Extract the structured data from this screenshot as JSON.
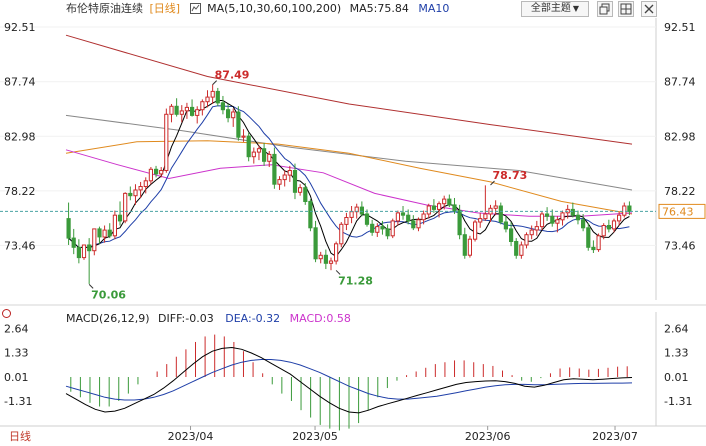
{
  "header": {
    "instrument": "布伦特原油连续",
    "period": "[日线]",
    "ma_label": "MA(5,10,30,60,100,200)",
    "ma5_label": "MA5:75.84",
    "ma10_label": "MA10",
    "theme_button": "全部主题",
    "theme_caret": "▼"
  },
  "colors": {
    "up": "#cc2b2b",
    "down": "#3a9a3a",
    "ma5": "#000000",
    "ma10": "#1f3fa8",
    "ma30": "#cc33cc",
    "ma60": "#e08a1e",
    "ma100": "#888888",
    "ma200": "#b03030",
    "diff": "#000000",
    "dea": "#1f3fa8",
    "price_tag": "#e08a1e"
  },
  "bottom_tab": "日线",
  "chart_data": [
    {
      "type": "candlestick",
      "y_ticks": [
        "92.51",
        "87.74",
        "82.98",
        "78.22",
        "73.46"
      ],
      "ylim": [
        68.7,
        93.3
      ],
      "x_ticks": [
        "2023/04",
        "2023/05",
        "2023/06",
        "2023/07"
      ],
      "current_price": "76.43",
      "annotations": [
        {
          "text": "87.49",
          "value": 87.49,
          "index": 28
        },
        {
          "text": "70.06",
          "value": 70.06,
          "index": 4
        },
        {
          "text": "71.28",
          "value": 71.28,
          "index": 52
        },
        {
          "text": "78.73",
          "value": 78.73,
          "index": 82
        }
      ],
      "series": {
        "ma200": [
          91.8,
          88.2,
          85.8,
          84.0,
          82.3
        ],
        "ma100": [
          84.8,
          83.5,
          82.0,
          80.8,
          80.0,
          78.3
        ],
        "ma60": [
          81.5,
          82.5,
          82.6,
          82.3,
          81.5,
          80.2,
          79.0,
          77.3,
          76.2
        ],
        "ma30": [
          81.8,
          80.5,
          79.3,
          80.2,
          80.5,
          79.8,
          78.0,
          77.0,
          76.3,
          76.0,
          76.0,
          76.3
        ]
      },
      "ohlc": [
        [
          75.8,
          77.2,
          73.5,
          74.1
        ],
        [
          74.1,
          74.9,
          72.7,
          73.3
        ],
        [
          73.3,
          74.0,
          71.9,
          72.4
        ],
        [
          72.4,
          73.5,
          72.2,
          73.5
        ],
        [
          73.5,
          74.1,
          70.1,
          73.0
        ],
        [
          73.0,
          74.9,
          72.6,
          74.9
        ],
        [
          74.9,
          75.1,
          73.6,
          74.2
        ],
        [
          74.2,
          75.2,
          73.7,
          74.8
        ],
        [
          74.8,
          75.4,
          74.1,
          74.3
        ],
        [
          74.3,
          76.5,
          74.0,
          76.1
        ],
        [
          76.1,
          77.3,
          75.2,
          75.6
        ],
        [
          75.6,
          78.1,
          75.4,
          78.0
        ],
        [
          78.0,
          78.6,
          77.4,
          77.8
        ],
        [
          77.8,
          78.8,
          77.0,
          78.3
        ],
        [
          78.3,
          79.0,
          77.6,
          78.6
        ],
        [
          78.6,
          79.4,
          78.0,
          79.1
        ],
        [
          79.1,
          80.3,
          78.8,
          80.1
        ],
        [
          80.1,
          80.4,
          79.4,
          79.7
        ],
        [
          79.7,
          80.3,
          79.4,
          80.0
        ],
        [
          80.0,
          85.4,
          79.8,
          84.9
        ],
        [
          84.9,
          85.8,
          84.2,
          85.6
        ],
        [
          85.6,
          86.3,
          84.7,
          84.9
        ],
        [
          84.9,
          85.7,
          84.2,
          85.2
        ],
        [
          85.2,
          85.9,
          84.5,
          85.5
        ],
        [
          85.5,
          86.2,
          84.7,
          84.8
        ],
        [
          84.8,
          85.6,
          84.1,
          85.3
        ],
        [
          85.3,
          86.2,
          84.8,
          86.0
        ],
        [
          86.0,
          87.0,
          85.5,
          86.4
        ],
        [
          86.4,
          87.5,
          85.8,
          86.9
        ],
        [
          86.9,
          87.2,
          85.6,
          85.9
        ],
        [
          85.9,
          86.5,
          84.9,
          85.3
        ],
        [
          85.3,
          85.8,
          84.2,
          84.6
        ],
        [
          84.6,
          85.4,
          83.8,
          85.1
        ],
        [
          85.1,
          85.6,
          82.6,
          82.9
        ],
        [
          82.9,
          83.6,
          82.5,
          83.0
        ],
        [
          83.0,
          83.3,
          80.8,
          81.2
        ],
        [
          81.2,
          82.0,
          80.6,
          81.6
        ],
        [
          81.6,
          82.2,
          80.9,
          81.9
        ],
        [
          81.9,
          82.4,
          80.4,
          80.8
        ],
        [
          80.8,
          81.7,
          80.3,
          81.4
        ],
        [
          81.4,
          82.0,
          78.4,
          78.8
        ],
        [
          78.8,
          79.5,
          78.3,
          79.2
        ],
        [
          79.2,
          80.0,
          78.6,
          79.6
        ],
        [
          79.6,
          80.4,
          79.0,
          80.0
        ],
        [
          80.0,
          80.6,
          77.5,
          78.1
        ],
        [
          78.1,
          78.8,
          77.8,
          78.5
        ],
        [
          78.5,
          78.9,
          77.0,
          77.3
        ],
        [
          77.3,
          77.5,
          74.7,
          75.0
        ],
        [
          75.0,
          75.6,
          72.0,
          72.3
        ],
        [
          72.3,
          72.9,
          71.9,
          72.6
        ],
        [
          72.6,
          73.1,
          71.4,
          71.9
        ],
        [
          71.9,
          72.4,
          71.3,
          72.1
        ],
        [
          72.1,
          73.8,
          71.8,
          73.6
        ],
        [
          73.6,
          75.5,
          73.3,
          75.3
        ],
        [
          75.3,
          76.3,
          74.8,
          75.9
        ],
        [
          75.9,
          76.9,
          75.4,
          76.4
        ],
        [
          76.4,
          77.1,
          75.8,
          76.8
        ],
        [
          76.8,
          77.3,
          76.0,
          76.2
        ],
        [
          76.2,
          76.6,
          75.1,
          75.3
        ],
        [
          75.3,
          75.7,
          74.3,
          74.6
        ],
        [
          74.6,
          75.4,
          74.2,
          75.1
        ],
        [
          75.1,
          75.6,
          74.4,
          74.9
        ],
        [
          74.9,
          75.3,
          74.0,
          74.3
        ],
        [
          74.3,
          75.8,
          74.1,
          75.6
        ],
        [
          75.6,
          76.5,
          75.2,
          76.3
        ],
        [
          76.3,
          76.9,
          75.7,
          76.1
        ],
        [
          76.1,
          76.6,
          75.3,
          75.6
        ],
        [
          75.6,
          76.1,
          74.8,
          75.0
        ],
        [
          75.0,
          75.9,
          74.7,
          75.7
        ],
        [
          75.7,
          76.5,
          75.3,
          76.2
        ],
        [
          76.2,
          77.1,
          75.8,
          76.9
        ],
        [
          76.9,
          77.5,
          76.3,
          76.6
        ],
        [
          76.6,
          77.3,
          75.9,
          77.1
        ],
        [
          77.1,
          77.8,
          76.6,
          77.5
        ],
        [
          77.5,
          77.9,
          76.8,
          77.0
        ],
        [
          77.0,
          77.6,
          76.2,
          76.5
        ],
        [
          76.5,
          77.0,
          74.0,
          74.4
        ],
        [
          74.4,
          75.0,
          72.3,
          72.6
        ],
        [
          72.6,
          74.3,
          72.4,
          74.0
        ],
        [
          74.0,
          75.7,
          73.8,
          75.5
        ],
        [
          75.5,
          76.3,
          75.0,
          75.8
        ],
        [
          75.8,
          78.7,
          75.6,
          76.2
        ],
        [
          76.2,
          77.0,
          75.5,
          76.7
        ],
        [
          76.7,
          77.4,
          76.1,
          76.9
        ],
        [
          76.9,
          77.2,
          75.3,
          75.5
        ],
        [
          75.5,
          76.0,
          74.6,
          74.9
        ],
        [
          74.9,
          75.5,
          73.4,
          73.8
        ],
        [
          73.8,
          74.1,
          72.3,
          72.6
        ],
        [
          72.6,
          73.8,
          72.3,
          73.5
        ],
        [
          73.5,
          74.6,
          73.2,
          74.4
        ],
        [
          74.4,
          75.2,
          74.0,
          74.8
        ],
        [
          74.8,
          75.6,
          74.3,
          75.1
        ],
        [
          75.1,
          76.4,
          74.8,
          76.2
        ],
        [
          76.2,
          76.8,
          75.6,
          76.0
        ],
        [
          76.0,
          76.6,
          75.1,
          75.4
        ],
        [
          75.4,
          76.0,
          74.6,
          75.7
        ],
        [
          75.7,
          76.5,
          75.2,
          76.3
        ],
        [
          76.3,
          77.0,
          75.8,
          76.6
        ],
        [
          76.6,
          77.2,
          75.9,
          76.1
        ],
        [
          76.1,
          76.5,
          75.3,
          75.7
        ],
        [
          75.7,
          76.2,
          74.7,
          75.0
        ],
        [
          75.0,
          75.4,
          73.0,
          73.3
        ],
        [
          73.3,
          73.9,
          72.8,
          73.1
        ],
        [
          73.1,
          74.5,
          72.9,
          74.3
        ],
        [
          74.3,
          75.4,
          74.0,
          75.2
        ],
        [
          75.2,
          75.7,
          74.6,
          74.9
        ],
        [
          74.9,
          75.8,
          74.6,
          75.6
        ],
        [
          75.6,
          76.4,
          75.2,
          76.1
        ],
        [
          76.1,
          77.2,
          75.9,
          76.9
        ],
        [
          76.9,
          77.3,
          76.1,
          76.43
        ]
      ]
    },
    {
      "type": "bar",
      "title": "MACD(26,12,9)",
      "diff_label": "DIFF:-0.03",
      "dea_label": "DEA:-0.32",
      "macd_label": "MACD:0.58",
      "y_ticks": [
        "2.64",
        "1.33",
        "0.01",
        "-1.31"
      ],
      "ylim": [
        -2.55,
        3.2
      ],
      "diff": [
        -0.9,
        -1.2,
        -1.5,
        -1.75,
        -1.9,
        -1.85,
        -1.7,
        -1.45,
        -1.2,
        -0.95,
        -0.6,
        -0.2,
        0.25,
        0.7,
        1.1,
        1.4,
        1.55,
        1.6,
        1.5,
        1.3,
        1.05,
        0.75,
        0.45,
        0.15,
        -0.25,
        -0.65,
        -1.05,
        -1.4,
        -1.7,
        -1.9,
        -1.95,
        -1.8,
        -1.6,
        -1.45,
        -1.3,
        -1.15,
        -1.0,
        -0.85,
        -0.7,
        -0.55,
        -0.4,
        -0.3,
        -0.25,
        -0.22,
        -0.2,
        -0.25,
        -0.35,
        -0.5,
        -0.55,
        -0.45,
        -0.3,
        -0.15,
        -0.1,
        -0.12,
        -0.15,
        -0.12,
        -0.08,
        -0.05,
        -0.03
      ],
      "dea": [
        -0.5,
        -0.65,
        -0.8,
        -0.95,
        -1.1,
        -1.2,
        -1.25,
        -1.25,
        -1.2,
        -1.1,
        -0.95,
        -0.75,
        -0.5,
        -0.25,
        0.0,
        0.25,
        0.45,
        0.65,
        0.8,
        0.9,
        0.95,
        0.95,
        0.9,
        0.8,
        0.65,
        0.45,
        0.25,
        0.0,
        -0.25,
        -0.5,
        -0.7,
        -0.9,
        -1.05,
        -1.15,
        -1.2,
        -1.2,
        -1.15,
        -1.1,
        -1.05,
        -0.95,
        -0.85,
        -0.75,
        -0.65,
        -0.55,
        -0.48,
        -0.42,
        -0.4,
        -0.4,
        -0.42,
        -0.42,
        -0.4,
        -0.38,
        -0.36,
        -0.35,
        -0.35,
        -0.34,
        -0.33,
        -0.33,
        -0.32
      ],
      "macd": [
        -0.8,
        -1.1,
        -1.4,
        -1.6,
        -1.6,
        -1.3,
        -0.9,
        -0.4,
        0.0,
        0.3,
        0.7,
        1.1,
        1.5,
        1.9,
        2.2,
        2.3,
        2.2,
        1.9,
        1.4,
        0.8,
        0.2,
        -0.4,
        -0.9,
        -1.3,
        -1.8,
        -2.2,
        -2.6,
        -2.8,
        -2.9,
        -2.8,
        -2.5,
        -1.8,
        -1.1,
        -0.6,
        -0.2,
        0.1,
        0.3,
        0.5,
        0.7,
        0.8,
        0.9,
        0.9,
        0.8,
        0.7,
        0.6,
        0.35,
        0.1,
        -0.2,
        -0.26,
        -0.06,
        0.2,
        0.46,
        0.52,
        0.46,
        0.4,
        0.44,
        0.5,
        0.56,
        0.58
      ]
    }
  ]
}
